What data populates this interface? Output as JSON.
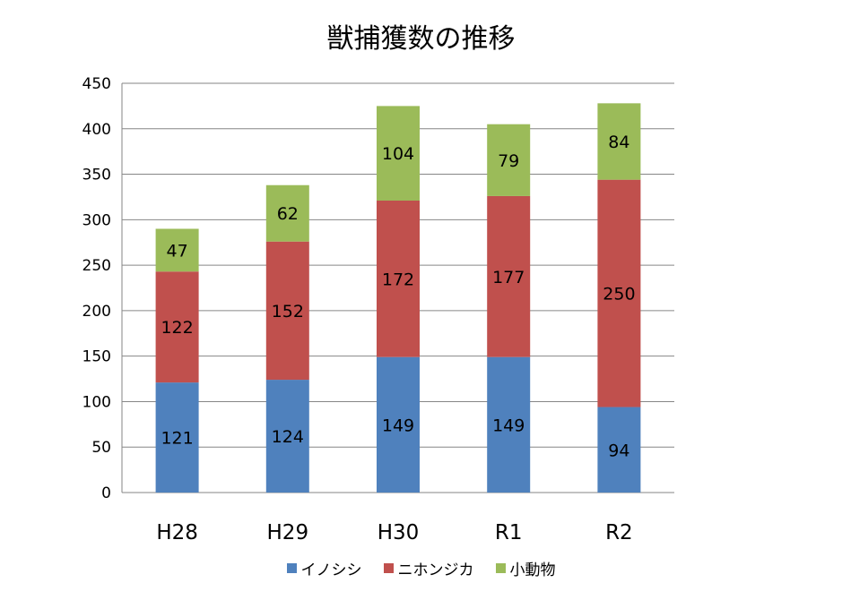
{
  "chart_data": {
    "type": "bar",
    "stacked": true,
    "title": "獣捕獲数の推移",
    "xlabel": "",
    "ylabel": "",
    "categories": [
      "H28",
      "H29",
      "H30",
      "R1",
      "R2"
    ],
    "ylim": [
      0,
      450
    ],
    "yticks": [
      0,
      50,
      100,
      150,
      200,
      250,
      300,
      350,
      400,
      450
    ],
    "grid": true,
    "legend_position": "bottom",
    "series": [
      {
        "name": "イノシシ",
        "color": "#4f81bd",
        "values": [
          121,
          124,
          149,
          149,
          94
        ]
      },
      {
        "name": "ニホンジカ",
        "color": "#c0504d",
        "values": [
          122,
          152,
          172,
          177,
          250
        ]
      },
      {
        "name": "小動物",
        "color": "#9bbb59",
        "values": [
          47,
          62,
          104,
          79,
          84
        ]
      }
    ]
  }
}
